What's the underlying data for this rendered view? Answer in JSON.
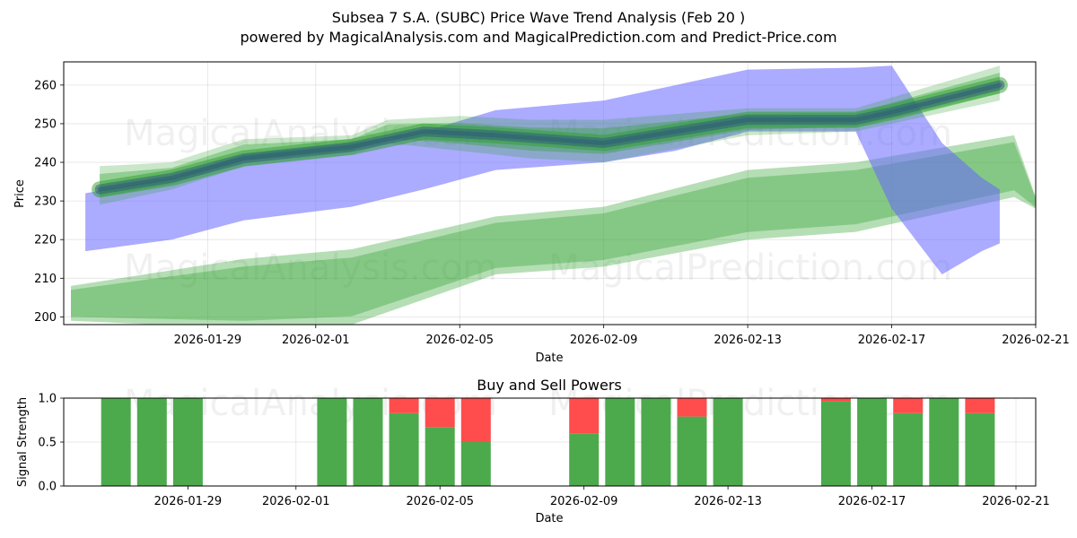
{
  "chart_data": [
    {
      "type": "area",
      "title_line1": "Subsea 7 S.A. (SUBC) Price Wave Trend Analysis (Feb 20 )",
      "title_line2": "powered by MagicalAnalysis.com and MagicalPrediction.com and Predict-Price.com",
      "xlabel": "Date",
      "ylabel": "Price",
      "xlim": [
        "2026-01-25",
        "2026-02-21"
      ],
      "ylim": [
        198,
        266
      ],
      "yticks": [
        200,
        210,
        220,
        230,
        240,
        250,
        260
      ],
      "xticks": [
        "2026-01-29",
        "2026-02-01",
        "2026-02-05",
        "2026-02-09",
        "2026-02-13",
        "2026-02-17",
        "2026-02-21"
      ],
      "grid": true,
      "colors": {
        "green": "#2ca02c",
        "blue": "#6666ff",
        "dark": "#2f5f78"
      },
      "series": [
        {
          "name": "blue forecast band",
          "x": [
            "2026-01-25.6",
            "2026-01-28",
            "2026-01-30",
            "2026-02-02",
            "2026-02-04",
            "2026-02-06",
            "2026-02-09",
            "2026-02-11",
            "2026-02-13",
            "2026-02-16",
            "2026-02-17",
            "2026-02-18.4",
            "2026-02-19.5",
            "2026-02-20"
          ],
          "upper": [
            232,
            236,
            242,
            245,
            248,
            253.5,
            256,
            260,
            264,
            264.5,
            265,
            245,
            236,
            233
          ],
          "lower": [
            217,
            220,
            225,
            228.5,
            233,
            238,
            240,
            243,
            248,
            248,
            228,
            211,
            217,
            219
          ]
        },
        {
          "name": "green upper channel",
          "x": [
            "2026-01-26",
            "2026-01-28",
            "2026-01-30",
            "2026-02-02",
            "2026-02-03",
            "2026-02-05",
            "2026-02-07",
            "2026-02-09",
            "2026-02-13",
            "2026-02-16",
            "2026-02-20"
          ],
          "upper": [
            239,
            240,
            246,
            247,
            251,
            252,
            251,
            251,
            254,
            254,
            265
          ],
          "lower": [
            229,
            233,
            239,
            242,
            245,
            243,
            241,
            240,
            247,
            248,
            256
          ]
        },
        {
          "name": "green lower channel",
          "x": [
            "2026-01-25.2",
            "2026-01-30",
            "2026-02-02",
            "2026-02-06",
            "2026-02-09",
            "2026-02-13",
            "2026-02-16",
            "2026-02-20.4",
            "2026-02-21"
          ],
          "upper": [
            208,
            215,
            217.5,
            226,
            228.5,
            238,
            240,
            247,
            231
          ],
          "lower": [
            199,
            197,
            198,
            211,
            213,
            220,
            222,
            231,
            228
          ]
        },
        {
          "name": "trend center line",
          "x": [
            "2026-01-26",
            "2026-01-28",
            "2026-01-30",
            "2026-02-02",
            "2026-02-04",
            "2026-02-06",
            "2026-02-09",
            "2026-02-11",
            "2026-02-13",
            "2026-02-16",
            "2026-02-17",
            "2026-02-20"
          ],
          "values": [
            233,
            236,
            241,
            244,
            248,
            247,
            245,
            248,
            251,
            251,
            253,
            260
          ]
        }
      ],
      "watermarks": [
        "MagicalAnalysis.com",
        "MagicalPrediction.com",
        "MagicalAnalysis.com",
        "MagicalPrediction.com"
      ]
    },
    {
      "type": "bar",
      "title": "Buy and Sell Powers",
      "xlabel": "Date",
      "ylabel": "Signal Strength",
      "ylim": [
        0,
        1
      ],
      "yticks": [
        "0.0",
        "0.5",
        "1.0"
      ],
      "xticks": [
        "2026-01-29",
        "2026-02-01",
        "2026-02-05",
        "2026-02-09",
        "2026-02-13",
        "2026-02-17",
        "2026-02-21"
      ],
      "colors": {
        "buy": "#4caa4c",
        "sell": "#ff4c4c"
      },
      "dates": [
        "2026-01-27",
        "2026-01-28",
        "2026-01-29",
        "2026-02-02",
        "2026-02-03",
        "2026-02-04",
        "2026-02-05",
        "2026-02-06",
        "2026-02-09",
        "2026-02-10",
        "2026-02-11",
        "2026-02-12",
        "2026-02-13",
        "2026-02-16",
        "2026-02-17",
        "2026-02-18",
        "2026-02-19",
        "2026-02-20"
      ],
      "buy": [
        1.0,
        1.0,
        1.0,
        1.0,
        1.0,
        0.83,
        0.67,
        0.5,
        0.6,
        1.0,
        1.0,
        0.79,
        1.0,
        0.96,
        1.0,
        0.83,
        1.0,
        0.83
      ],
      "sell": [
        0.0,
        0.0,
        0.0,
        0.0,
        0.0,
        0.17,
        0.33,
        0.5,
        0.4,
        0.0,
        0.0,
        0.21,
        0.0,
        0.04,
        0.0,
        0.17,
        0.0,
        0.17
      ],
      "watermarks": [
        "MagicalAnalysis.com",
        "MagicalPrediction.com"
      ]
    }
  ]
}
